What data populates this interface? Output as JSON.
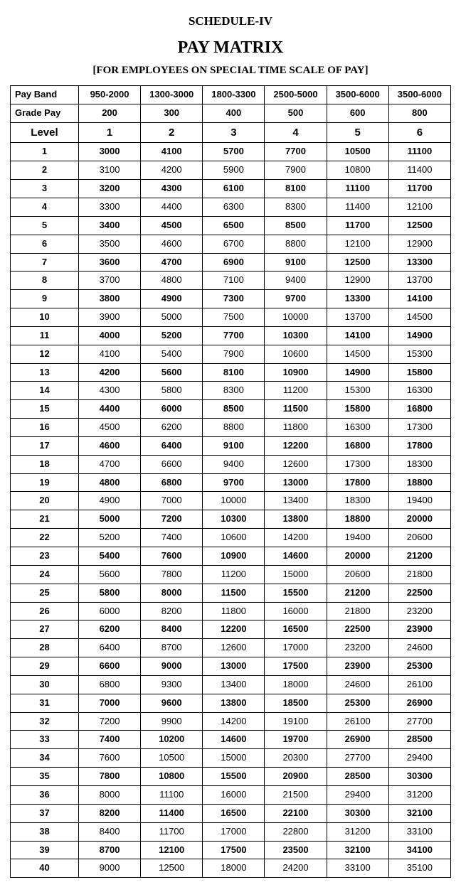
{
  "schedule": "SCHEDULE-IV",
  "title": "PAY MATRIX",
  "subtitle": "[FOR EMPLOYEES ON SPECIAL TIME SCALE OF PAY]",
  "header_labels": {
    "pay_band": "Pay Band",
    "grade_pay": "Grade Pay",
    "level": "Level"
  },
  "pay_bands": [
    "950-2000",
    "1300-3000",
    "1800-3300",
    "2500-5000",
    "3500-6000",
    "3500-6000"
  ],
  "grade_pays": [
    "200",
    "300",
    "400",
    "500",
    "600",
    "800"
  ],
  "levels": [
    "1",
    "2",
    "3",
    "4",
    "5",
    "6"
  ],
  "rows": [
    {
      "i": "1",
      "v": [
        "3000",
        "4100",
        "5700",
        "7700",
        "10500",
        "11100"
      ],
      "b": true
    },
    {
      "i": "2",
      "v": [
        "3100",
        "4200",
        "5900",
        "7900",
        "10800",
        "11400"
      ],
      "b": false
    },
    {
      "i": "3",
      "v": [
        "3200",
        "4300",
        "6100",
        "8100",
        "11100",
        "11700"
      ],
      "b": true
    },
    {
      "i": "4",
      "v": [
        "3300",
        "4400",
        "6300",
        "8300",
        "11400",
        "12100"
      ],
      "b": false
    },
    {
      "i": "5",
      "v": [
        "3400",
        "4500",
        "6500",
        "8500",
        "11700",
        "12500"
      ],
      "b": true
    },
    {
      "i": "6",
      "v": [
        "3500",
        "4600",
        "6700",
        "8800",
        "12100",
        "12900"
      ],
      "b": false
    },
    {
      "i": "7",
      "v": [
        "3600",
        "4700",
        "6900",
        "9100",
        "12500",
        "13300"
      ],
      "b": true
    },
    {
      "i": "8",
      "v": [
        "3700",
        "4800",
        "7100",
        "9400",
        "12900",
        "13700"
      ],
      "b": false
    },
    {
      "i": "9",
      "v": [
        "3800",
        "4900",
        "7300",
        "9700",
        "13300",
        "14100"
      ],
      "b": true
    },
    {
      "i": "10",
      "v": [
        "3900",
        "5000",
        "7500",
        "10000",
        "13700",
        "14500"
      ],
      "b": false
    },
    {
      "i": "11",
      "v": [
        "4000",
        "5200",
        "7700",
        "10300",
        "14100",
        "14900"
      ],
      "b": true
    },
    {
      "i": "12",
      "v": [
        "4100",
        "5400",
        "7900",
        "10600",
        "14500",
        "15300"
      ],
      "b": false
    },
    {
      "i": "13",
      "v": [
        "4200",
        "5600",
        "8100",
        "10900",
        "14900",
        "15800"
      ],
      "b": true
    },
    {
      "i": "14",
      "v": [
        "4300",
        "5800",
        "8300",
        "11200",
        "15300",
        "16300"
      ],
      "b": false
    },
    {
      "i": "15",
      "v": [
        "4400",
        "6000",
        "8500",
        "11500",
        "15800",
        "16800"
      ],
      "b": true
    },
    {
      "i": "16",
      "v": [
        "4500",
        "6200",
        "8800",
        "11800",
        "16300",
        "17300"
      ],
      "b": false
    },
    {
      "i": "17",
      "v": [
        "4600",
        "6400",
        "9100",
        "12200",
        "16800",
        "17800"
      ],
      "b": true
    },
    {
      "i": "18",
      "v": [
        "4700",
        "6600",
        "9400",
        "12600",
        "17300",
        "18300"
      ],
      "b": false
    },
    {
      "i": "19",
      "v": [
        "4800",
        "6800",
        "9700",
        "13000",
        "17800",
        "18800"
      ],
      "b": true
    },
    {
      "i": "20",
      "v": [
        "4900",
        "7000",
        "10000",
        "13400",
        "18300",
        "19400"
      ],
      "b": false
    },
    {
      "i": "21",
      "v": [
        "5000",
        "7200",
        "10300",
        "13800",
        "18800",
        "20000"
      ],
      "b": true
    },
    {
      "i": "22",
      "v": [
        "5200",
        "7400",
        "10600",
        "14200",
        "19400",
        "20600"
      ],
      "b": false
    },
    {
      "i": "23",
      "v": [
        "5400",
        "7600",
        "10900",
        "14600",
        "20000",
        "21200"
      ],
      "b": true
    },
    {
      "i": "24",
      "v": [
        "5600",
        "7800",
        "11200",
        "15000",
        "20600",
        "21800"
      ],
      "b": false
    },
    {
      "i": "25",
      "v": [
        "5800",
        "8000",
        "11500",
        "15500",
        "21200",
        "22500"
      ],
      "b": true
    },
    {
      "i": "26",
      "v": [
        "6000",
        "8200",
        "11800",
        "16000",
        "21800",
        "23200"
      ],
      "b": false
    },
    {
      "i": "27",
      "v": [
        "6200",
        "8400",
        "12200",
        "16500",
        "22500",
        "23900"
      ],
      "b": true
    },
    {
      "i": "28",
      "v": [
        "6400",
        "8700",
        "12600",
        "17000",
        "23200",
        "24600"
      ],
      "b": false
    },
    {
      "i": "29",
      "v": [
        "6600",
        "9000",
        "13000",
        "17500",
        "23900",
        "25300"
      ],
      "b": true
    },
    {
      "i": "30",
      "v": [
        "6800",
        "9300",
        "13400",
        "18000",
        "24600",
        "26100"
      ],
      "b": false
    },
    {
      "i": "31",
      "v": [
        "7000",
        "9600",
        "13800",
        "18500",
        "25300",
        "26900"
      ],
      "b": true
    },
    {
      "i": "32",
      "v": [
        "7200",
        "9900",
        "14200",
        "19100",
        "26100",
        "27700"
      ],
      "b": false
    },
    {
      "i": "33",
      "v": [
        "7400",
        "10200",
        "14600",
        "19700",
        "26900",
        "28500"
      ],
      "b": true
    },
    {
      "i": "34",
      "v": [
        "7600",
        "10500",
        "15000",
        "20300",
        "27700",
        "29400"
      ],
      "b": false
    },
    {
      "i": "35",
      "v": [
        "7800",
        "10800",
        "15500",
        "20900",
        "28500",
        "30300"
      ],
      "b": true
    },
    {
      "i": "36",
      "v": [
        "8000",
        "11100",
        "16000",
        "21500",
        "29400",
        "31200"
      ],
      "b": false
    },
    {
      "i": "37",
      "v": [
        "8200",
        "11400",
        "16500",
        "22100",
        "30300",
        "32100"
      ],
      "b": true
    },
    {
      "i": "38",
      "v": [
        "8400",
        "11700",
        "17000",
        "22800",
        "31200",
        "33100"
      ],
      "b": false
    },
    {
      "i": "39",
      "v": [
        "8700",
        "12100",
        "17500",
        "23500",
        "32100",
        "34100"
      ],
      "b": true
    },
    {
      "i": "40",
      "v": [
        "9000",
        "12500",
        "18000",
        "24200",
        "33100",
        "35100"
      ],
      "b": false
    }
  ]
}
